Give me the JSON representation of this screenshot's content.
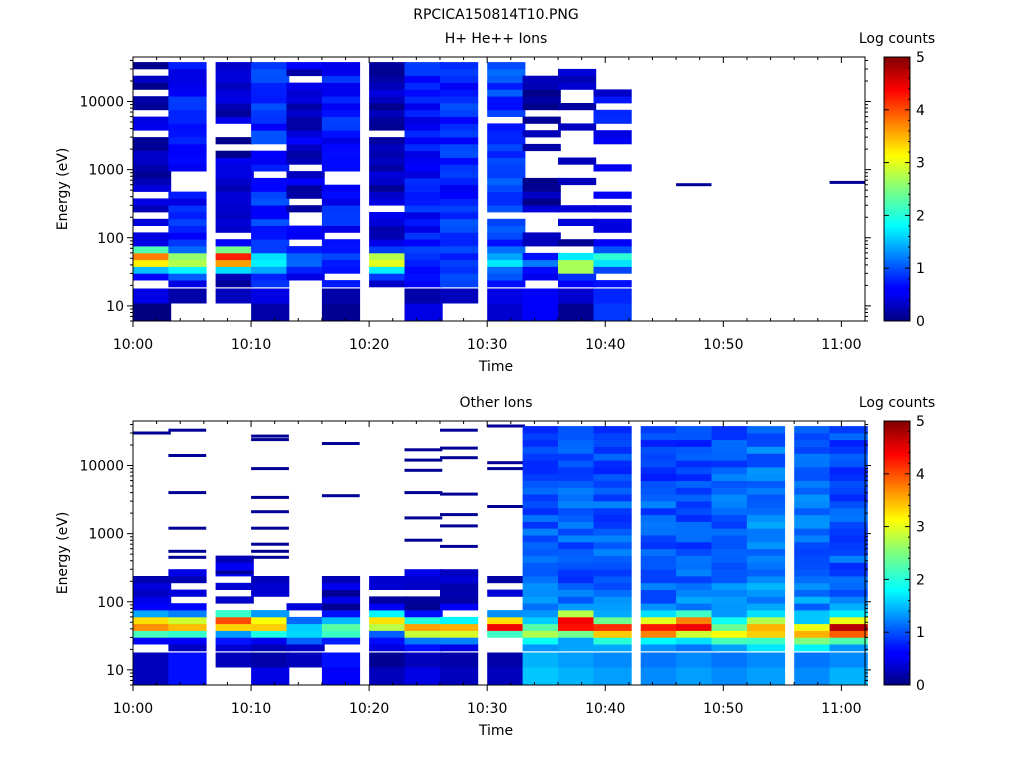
{
  "figure": {
    "title": "RPCICA150814T10.PNG"
  },
  "chart_data": [
    {
      "type": "heatmap",
      "title": "H+ He++ Ions",
      "xlabel": "Time",
      "ylabel": "Energy (eV)",
      "colorbar_label": "Log counts",
      "colorbar_ticks": [
        "0",
        "1",
        "2",
        "3",
        "4",
        "5"
      ],
      "colorbar_range": [
        0,
        5
      ],
      "colormap": "jet",
      "x_ticks": [
        "10:00",
        "10:10",
        "10:20",
        "10:30",
        "10:40",
        "10:50",
        "11:00"
      ],
      "x_range": [
        "10:00",
        "11:02"
      ],
      "y_ticks": [
        "10",
        "100",
        "1000",
        "10000"
      ],
      "y_scale": "log",
      "y_range": [
        6,
        45000
      ],
      "grid": false,
      "time_bins": [
        "10:00",
        "10:03",
        "10:07",
        "10:10",
        "10:13",
        "10:16",
        "10:20",
        "10:23",
        "10:26",
        "10:30",
        "10:33",
        "10:36",
        "10:39"
      ],
      "bin_width_min": 3.2,
      "energy_bins_per_decade": 10,
      "profiles": [
        {
          "t": "10:00",
          "peak": 4.0,
          "peakE": 50,
          "base": 0.3,
          "top": 40000,
          "gap": 0.25,
          "low": [
            0,
            0.5
          ]
        },
        {
          "t": "10:03",
          "peak": 3.0,
          "peakE": 45,
          "base": 0.7,
          "top": 40000,
          "gap": 0.05,
          "low": [
            null,
            0.2
          ]
        },
        {
          "t": "10:07",
          "peak": 4.2,
          "peakE": 50,
          "base": 0.3,
          "top": 40000,
          "gap": 0.25,
          "low": [
            null,
            0.3
          ]
        },
        {
          "t": "10:10",
          "peak": 1.8,
          "peakE": 45,
          "base": 0.8,
          "top": 40000,
          "gap": 0.05,
          "low": [
            0.2,
            0.5
          ]
        },
        {
          "t": "10:13",
          "peak": 1.0,
          "peakE": 50,
          "base": 0.4,
          "top": 40000,
          "gap": 0.3,
          "low": [
            null,
            null
          ]
        },
        {
          "t": "10:16",
          "peak": 1.0,
          "peakE": 50,
          "base": 0.7,
          "top": 40000,
          "gap": 0.1,
          "low": [
            0.1,
            0.2
          ]
        },
        {
          "t": "10:20",
          "peak": 3.2,
          "peakE": 45,
          "base": 0.3,
          "top": 40000,
          "gap": 0.2,
          "low": [
            null,
            null
          ]
        },
        {
          "t": "10:23",
          "peak": 1.0,
          "peakE": 50,
          "base": 0.7,
          "top": 40000,
          "gap": 0.05,
          "low": [
            0.5,
            0.2
          ]
        },
        {
          "t": "10:26",
          "peak": 0.9,
          "peakE": 50,
          "base": 0.8,
          "top": 40000,
          "gap": 0.05,
          "low": [
            null,
            0.3
          ]
        },
        {
          "t": "10:30",
          "peak": 1.8,
          "peakE": 45,
          "base": 0.9,
          "top": 40000,
          "gap": 0.05,
          "low": [
            0.4,
            0.5
          ]
        },
        {
          "t": "10:33",
          "peak": 1.0,
          "peakE": 40,
          "base": 0.2,
          "top": 25000,
          "gap": 0.55,
          "low": [
            0.6,
            0.6
          ]
        },
        {
          "t": "10:36",
          "peak": 3.0,
          "peakE": 40,
          "base": 0.3,
          "top": 32000,
          "gap": 0.55,
          "low": [
            0.1,
            0.4
          ]
        },
        {
          "t": "10:39",
          "peak": 1.9,
          "peakE": 50,
          "base": 0.6,
          "top": 16000,
          "gap": 0.45,
          "low": [
            0.9,
            0.8
          ]
        }
      ],
      "isolated_points": [
        {
          "t": "10:46",
          "t_end": "10:49",
          "energy": 600,
          "value": 0.1
        },
        {
          "t": "10:59",
          "t_end": "11:02",
          "energy": 650,
          "value": 0.1
        }
      ]
    },
    {
      "type": "heatmap",
      "title": "Other Ions",
      "xlabel": "Time",
      "ylabel": "Energy (eV)",
      "colorbar_label": "Log counts",
      "colorbar_ticks": [
        "0",
        "1",
        "2",
        "3",
        "4",
        "5"
      ],
      "colorbar_range": [
        0,
        5
      ],
      "colormap": "jet",
      "x_ticks": [
        "10:00",
        "10:10",
        "10:20",
        "10:30",
        "10:40",
        "10:50",
        "11:00"
      ],
      "x_range": [
        "10:00",
        "11:02"
      ],
      "y_ticks": [
        "10",
        "100",
        "1000",
        "10000"
      ],
      "y_scale": "log",
      "y_range": [
        6,
        45000
      ],
      "grid": false,
      "time_bins": [
        "10:00",
        "10:03",
        "10:07",
        "10:10",
        "10:13",
        "10:16",
        "10:20",
        "10:23",
        "10:26",
        "10:30",
        "10:33",
        "10:36",
        "10:39",
        "10:43",
        "10:46",
        "10:49",
        "10:52",
        "10:56",
        "10:59"
      ],
      "bin_width_min": 3.2,
      "energy_bins_per_decade": 10,
      "profiles": [
        {
          "t": "10:00",
          "peak": 4.0,
          "peakE": 45,
          "base": 0.3,
          "top": 230,
          "gap": 0.35,
          "low": [
            0.3,
            0.3
          ],
          "sparse": [
            30000
          ]
        },
        {
          "t": "10:03",
          "peak": 3.6,
          "peakE": 45,
          "base": 0.3,
          "top": 250,
          "gap": 0.3,
          "low": [
            0.7,
            0.7
          ],
          "sparse": [
            33000,
            14000,
            4000,
            1200,
            550,
            450
          ]
        },
        {
          "t": "10:07",
          "peak": 4.3,
          "peakE": 50,
          "base": 0.4,
          "top": 400,
          "gap": 0.3,
          "low": [
            null,
            0.3
          ],
          "sparse": [
            270
          ]
        },
        {
          "t": "10:10",
          "peak": 3.6,
          "peakE": 45,
          "base": 0.3,
          "top": 230,
          "gap": 0.35,
          "low": [
            0.5,
            0.2
          ],
          "sparse": [
            27000,
            24000,
            9000,
            3400,
            2100,
            1200,
            700,
            550,
            450
          ]
        },
        {
          "t": "10:13",
          "peak": 1.8,
          "peakE": 40,
          "base": 0.5,
          "top": 90,
          "gap": 0.3,
          "low": [
            null,
            0.3
          ],
          "sparse": []
        },
        {
          "t": "10:16",
          "peak": 2.4,
          "peakE": 40,
          "base": 0.3,
          "top": 250,
          "gap": 0.3,
          "low": [
            0.6,
            0.7
          ],
          "sparse": [
            21000,
            3600
          ]
        },
        {
          "t": "10:20",
          "peak": 3.6,
          "peakE": 50,
          "base": 0.3,
          "top": 350,
          "gap": 0.3,
          "low": [
            0.3,
            0.1
          ],
          "sparse": []
        },
        {
          "t": "10:23",
          "peak": 3.5,
          "peakE": 40,
          "base": 0.3,
          "top": 250,
          "gap": 0.3,
          "low": [
            0.5,
            0.3
          ],
          "sparse": [
            17000,
            12000,
            8500,
            4000,
            1700,
            800
          ]
        },
        {
          "t": "10:26",
          "peak": 3.6,
          "peakE": 40,
          "base": 0.3,
          "top": 240,
          "gap": 0.25,
          "low": [
            0.3,
            0.2
          ],
          "sparse": [
            33000,
            18000,
            13000,
            3800,
            1900,
            1300,
            650
          ]
        },
        {
          "t": "10:30",
          "peak": 4.3,
          "peakE": 45,
          "base": 0.3,
          "top": 220,
          "gap": 0.25,
          "low": [
            0.3,
            0.2
          ],
          "sparse": [
            38000,
            11000,
            9000,
            2500
          ]
        },
        {
          "t": "10:33",
          "peak": 2.5,
          "peakE": 35,
          "base": 1.2,
          "top": 40000,
          "gap": 0.0,
          "low": [
            1.6,
            1.5
          ]
        },
        {
          "t": "10:36",
          "peak": 4.8,
          "peakE": 50,
          "base": 1.2,
          "top": 40000,
          "gap": 0.0,
          "low": [
            1.5,
            1.4
          ]
        },
        {
          "t": "10:39",
          "peak": 4.0,
          "peakE": 40,
          "base": 1.2,
          "top": 40000,
          "gap": 0.0,
          "low": [
            1.4,
            1.3
          ]
        },
        {
          "t": "10:43",
          "peak": 4.2,
          "peakE": 40,
          "base": 1.2,
          "top": 40000,
          "gap": 0.0,
          "low": [
            1.3,
            1.2
          ]
        },
        {
          "t": "10:46",
          "peak": 4.3,
          "peakE": 45,
          "base": 1.2,
          "top": 40000,
          "gap": 0.0,
          "low": [
            1.4,
            1.3
          ]
        },
        {
          "t": "10:49",
          "peak": 3.1,
          "peakE": 35,
          "base": 1.3,
          "top": 40000,
          "gap": 0.0,
          "low": [
            1.3,
            1.2
          ]
        },
        {
          "t": "10:52",
          "peak": 3.8,
          "peakE": 40,
          "base": 1.4,
          "top": 40000,
          "gap": 0.0,
          "low": [
            1.4,
            1.3
          ]
        },
        {
          "t": "10:56",
          "peak": 3.3,
          "peakE": 35,
          "base": 1.3,
          "top": 40000,
          "gap": 0.0,
          "low": [
            1.3,
            1.2
          ]
        },
        {
          "t": "10:59",
          "peak": 4.6,
          "peakE": 40,
          "base": 1.2,
          "top": 40000,
          "gap": 0.0,
          "low": [
            1.5,
            1.3
          ]
        }
      ]
    }
  ]
}
